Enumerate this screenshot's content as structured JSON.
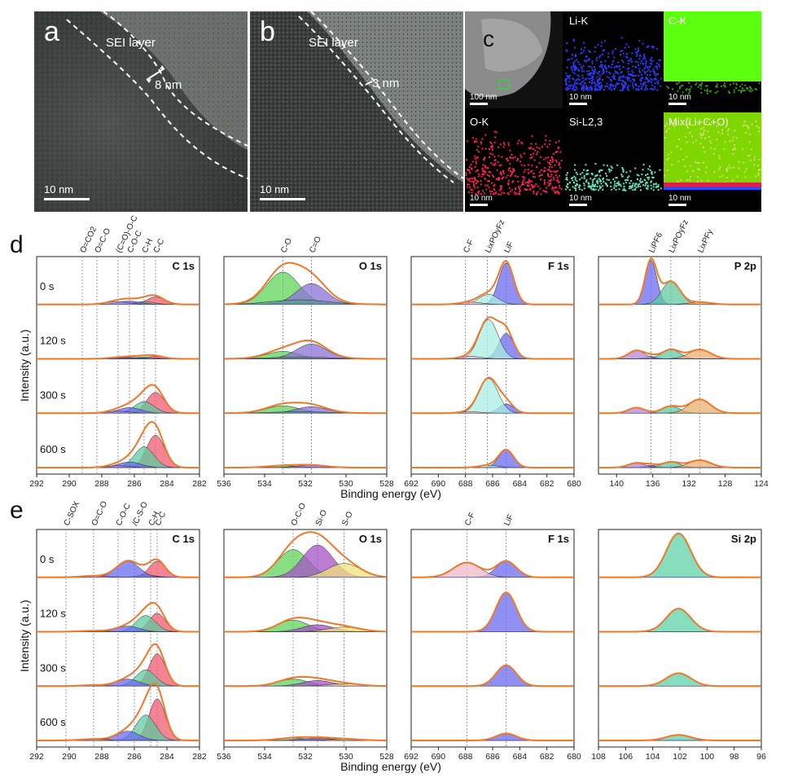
{
  "tem": {
    "a": {
      "label": "a",
      "layer": "SEI layer",
      "thickness": "8 nm",
      "scale": "10 nm"
    },
    "b": {
      "label": "b",
      "layer": "SEI layer",
      "thickness": "3 nm",
      "scale": "10 nm"
    }
  },
  "eds": {
    "label": "c",
    "tiles": [
      {
        "id": "haadf",
        "label": "",
        "scale": "100 nm",
        "color": "#9a9a9a"
      },
      {
        "id": "li",
        "label": "Li-K",
        "scale": "10 nm",
        "color": "#2b2bff"
      },
      {
        "id": "c",
        "label": "C-K",
        "scale": "10 nm",
        "color": "#66ff00"
      },
      {
        "id": "o",
        "label": "O-K",
        "scale": "10 nm",
        "color": "#ff1e4a"
      },
      {
        "id": "si",
        "label": "Si-L2,3",
        "scale": "10 nm",
        "color": "#50e0b0"
      },
      {
        "id": "mix",
        "label": "Mix(Li+C+O)",
        "scale": "10 nm",
        "color": "#7fe000"
      }
    ]
  },
  "figure": {
    "row_d_label": "d",
    "row_e_label": "e",
    "ylabel": "Intensity (a.u.)",
    "xlabel": "Binding energy (eV)",
    "times": [
      "0 s",
      "120 s",
      "300 s",
      "600 s"
    ]
  },
  "chart_data": [
    {
      "type": "area",
      "row": "d",
      "title": "C 1s",
      "xlim": [
        292,
        282
      ],
      "xticks": [
        292,
        290,
        288,
        286,
        284,
        282
      ],
      "refs": [
        {
          "x": 289.2,
          "label": "O=CO2"
        },
        {
          "x": 288.3,
          "label": "O=C-O"
        },
        {
          "x": 287.0,
          "label": "(C=O)-O-C"
        },
        {
          "x": 286.3,
          "label": "C-O-C"
        },
        {
          "x": 285.4,
          "label": "C-H"
        },
        {
          "x": 284.7,
          "label": "C-C"
        }
      ],
      "components": [
        {
          "name": "C-C",
          "center": 284.7,
          "width": 0.55,
          "color": "#ef5b6f"
        },
        {
          "name": "C-H",
          "center": 285.4,
          "width": 0.6,
          "color": "#5fc9a0"
        },
        {
          "name": "C-O-C",
          "center": 286.3,
          "width": 0.7,
          "color": "#6a6af0"
        },
        {
          "name": "(C=O)-O-C",
          "center": 287.0,
          "width": 0.7,
          "color": "#b38ad9"
        },
        {
          "name": "O=C-O",
          "center": 288.3,
          "width": 0.7,
          "color": "#e8c06a"
        }
      ],
      "amplitudes": [
        [
          0.16,
          0.06,
          0.07,
          0.06,
          0.0
        ],
        [
          0.05,
          0.04,
          0.03,
          0.02,
          0.0
        ],
        [
          0.45,
          0.25,
          0.12,
          0.04,
          0.0
        ],
        [
          0.7,
          0.45,
          0.12,
          0.04,
          0.0
        ]
      ]
    },
    {
      "type": "area",
      "row": "d",
      "title": "O 1s",
      "xlim": [
        536,
        528
      ],
      "xticks": [
        536,
        534,
        532,
        530,
        528
      ],
      "refs": [
        {
          "x": 533.1,
          "label": "C-O"
        },
        {
          "x": 531.7,
          "label": "C=O"
        }
      ],
      "components": [
        {
          "name": "C-O",
          "center": 533.1,
          "width": 0.8,
          "color": "#5fd35a"
        },
        {
          "name": "C=O",
          "center": 531.7,
          "width": 0.75,
          "color": "#8a72d6"
        },
        {
          "name": "",
          "center": 532.3,
          "width": 1.4,
          "color": "#5a9a9a"
        }
      ],
      "amplitudes": [
        [
          0.7,
          0.45,
          0.1
        ],
        [
          0.16,
          0.32,
          0.04
        ],
        [
          0.16,
          0.14,
          0.03
        ],
        [
          0.04,
          0.05,
          0.0
        ]
      ]
    },
    {
      "type": "area",
      "row": "d",
      "title": "F 1s",
      "xlim": [
        692,
        680
      ],
      "xticks": [
        692,
        690,
        688,
        686,
        684,
        682,
        680
      ],
      "refs": [
        {
          "x": 688.0,
          "label": "C-F"
        },
        {
          "x": 686.4,
          "label": "LixPOyFz"
        },
        {
          "x": 685.0,
          "label": "LiF"
        }
      ],
      "components": [
        {
          "name": "LiF",
          "center": 685.0,
          "width": 0.55,
          "color": "#6a6af0"
        },
        {
          "name": "LixPOyFz",
          "center": 686.3,
          "width": 0.7,
          "color": "#a9efe2"
        },
        {
          "name": "C-F",
          "center": 687.6,
          "width": 0.8,
          "color": "#f0b8c8"
        }
      ],
      "amplitudes": [
        [
          0.9,
          0.22,
          0.05
        ],
        [
          0.55,
          0.85,
          0.05
        ],
        [
          0.2,
          0.75,
          0.03
        ],
        [
          0.38,
          0.05,
          0.0
        ]
      ]
    },
    {
      "type": "area",
      "row": "d",
      "title": "P 2p",
      "xlim": [
        142,
        124
      ],
      "xticks": [
        140,
        136,
        132,
        128,
        124
      ],
      "refs": [
        {
          "x": 136.2,
          "label": "LiPF6"
        },
        {
          "x": 134.0,
          "label": "LixPOyFz"
        },
        {
          "x": 130.8,
          "label": "LixPFy"
        }
      ],
      "components": [
        {
          "name": "LiPF6",
          "center": 136.2,
          "width": 0.65,
          "color": "#6a6af0"
        },
        {
          "name": "LixPOyFz",
          "center": 134.0,
          "width": 1.0,
          "color": "#5fc9a0"
        },
        {
          "name": "LixPFy",
          "center": 130.8,
          "width": 1.2,
          "color": "#e8b070"
        },
        {
          "name": "",
          "center": 137.8,
          "width": 0.9,
          "color": "#b38ad9"
        }
      ],
      "amplitudes": [
        [
          0.95,
          0.5,
          0.05,
          0.0
        ],
        [
          0.05,
          0.2,
          0.2,
          0.18
        ],
        [
          0.0,
          0.15,
          0.3,
          0.12
        ],
        [
          0.05,
          0.12,
          0.16,
          0.1
        ]
      ]
    },
    {
      "type": "area",
      "row": "e",
      "title": "C 1s",
      "xlim": [
        292,
        282
      ],
      "xticks": [
        292,
        290,
        288,
        286,
        284,
        282
      ],
      "refs": [
        {
          "x": 290.2,
          "label": "C-SOX"
        },
        {
          "x": 288.5,
          "label": "O=C-O"
        },
        {
          "x": 287.0,
          "label": "C-O-C"
        },
        {
          "x": 286.0,
          "label": "/C-S-O"
        },
        {
          "x": 285.0,
          "label": "C-H"
        },
        {
          "x": 284.6,
          "label": "C-C"
        }
      ],
      "components": [
        {
          "name": "C-C",
          "center": 284.6,
          "width": 0.5,
          "color": "#ef5b6f"
        },
        {
          "name": "C-H",
          "center": 285.3,
          "width": 0.6,
          "color": "#5fc9a0"
        },
        {
          "name": "C-O-C",
          "center": 286.4,
          "width": 0.7,
          "color": "#6a6af0"
        },
        {
          "name": "O=C-O",
          "center": 288.5,
          "width": 0.8,
          "color": "#e8c06a"
        }
      ],
      "amplitudes": [
        [
          0.35,
          0.05,
          0.35,
          0.03
        ],
        [
          0.4,
          0.35,
          0.12,
          0.02
        ],
        [
          0.7,
          0.35,
          0.15,
          0.02
        ],
        [
          0.9,
          0.55,
          0.2,
          0.03
        ]
      ]
    },
    {
      "type": "area",
      "row": "e",
      "title": "O 1s",
      "xlim": [
        536,
        528
      ],
      "xticks": [
        536,
        534,
        532,
        530,
        528
      ],
      "refs": [
        {
          "x": 532.6,
          "label": "O-C-O"
        },
        {
          "x": 531.4,
          "label": "Si-O"
        },
        {
          "x": 530.1,
          "label": "S-O"
        }
      ],
      "components": [
        {
          "name": "O-C-O",
          "center": 532.6,
          "width": 0.75,
          "color": "#5fd35a"
        },
        {
          "name": "Si-O",
          "center": 531.4,
          "width": 0.75,
          "color": "#a653c4"
        },
        {
          "name": "S-O",
          "center": 530.1,
          "width": 0.8,
          "color": "#f0e07a"
        }
      ],
      "amplitudes": [
        [
          0.6,
          0.7,
          0.3
        ],
        [
          0.25,
          0.15,
          0.1
        ],
        [
          0.15,
          0.12,
          0.05
        ],
        [
          0.05,
          0.05,
          0.03
        ]
      ]
    },
    {
      "type": "area",
      "row": "e",
      "title": "F 1s",
      "xlim": [
        692,
        680
      ],
      "xticks": [
        692,
        690,
        688,
        686,
        684,
        682,
        680
      ],
      "refs": [
        {
          "x": 687.9,
          "label": "C-F"
        },
        {
          "x": 685.0,
          "label": "LiF"
        }
      ],
      "components": [
        {
          "name": "LiF",
          "center": 685.0,
          "width": 0.75,
          "color": "#6a6af0"
        },
        {
          "name": "C-F",
          "center": 687.9,
          "width": 1.0,
          "color": "#f0b8c8"
        }
      ],
      "amplitudes": [
        [
          0.35,
          0.32
        ],
        [
          0.85,
          0.0
        ],
        [
          0.45,
          0.0
        ],
        [
          0.15,
          0.0
        ]
      ]
    },
    {
      "type": "area",
      "row": "e",
      "title": "Si 2p",
      "xlim": [
        108,
        96
      ],
      "xticks": [
        108,
        106,
        104,
        102,
        100,
        98,
        96
      ],
      "refs": [],
      "components": [
        {
          "name": "",
          "center": 102.1,
          "width": 0.9,
          "color": "#5fd3a8"
        }
      ],
      "amplitudes": [
        [
          0.95
        ],
        [
          0.5
        ],
        [
          0.28
        ],
        [
          0.12
        ]
      ]
    }
  ]
}
